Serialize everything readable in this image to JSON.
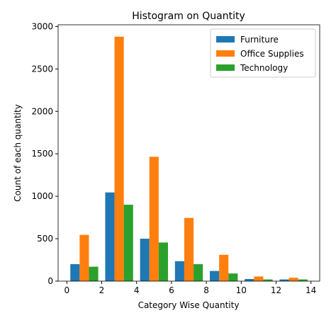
{
  "chart_data": {
    "type": "histogram",
    "title": "Histogram on Quantity",
    "x_label": "Category Wise Quantity",
    "y_label": "Count of each quantity",
    "bins": [
      0,
      2,
      4,
      6,
      8,
      10,
      12,
      14
    ],
    "series": [
      {
        "name": "Furniture",
        "color": "#1f77b4",
        "values": [
          200,
          1045,
          500,
          235,
          120,
          25,
          20
        ]
      },
      {
        "name": "Office Supplies",
        "color": "#ff7f0e",
        "values": [
          545,
          2880,
          1465,
          745,
          310,
          55,
          40
        ]
      },
      {
        "name": "Technology",
        "color": "#2ca02c",
        "values": [
          170,
          900,
          455,
          200,
          90,
          20,
          20
        ]
      }
    ],
    "xlim": [
      -0.5,
      14.5
    ],
    "ylim": [
      0,
      3020
    ],
    "xticks": [
      0,
      2,
      4,
      6,
      8,
      10,
      12,
      14
    ],
    "yticks": [
      0,
      500,
      1000,
      1500,
      2000,
      2500,
      3000
    ],
    "legend": "upper right"
  }
}
